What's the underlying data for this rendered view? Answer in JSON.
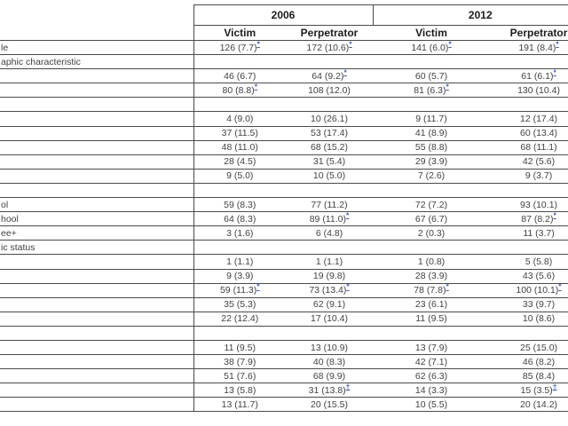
{
  "table": {
    "year_groups": [
      {
        "label": "2006"
      },
      {
        "label": "2012"
      }
    ],
    "col_headers": [
      "Victim",
      "Perpetrator",
      "Victim",
      "Perpetrator"
    ],
    "rows": [
      {
        "label": "le",
        "cells": [
          {
            "text": "126 (7.7)",
            "marker": "*"
          },
          {
            "text": "172 (10.6)",
            "marker": "*"
          },
          {
            "text": "141 (6.0)",
            "marker": "*"
          },
          {
            "text": "191 (8.4)",
            "marker": "*"
          }
        ]
      },
      {
        "label": "aphic characteristic",
        "cells": [
          {
            "text": "",
            "marker": ""
          },
          {
            "text": "",
            "marker": ""
          },
          {
            "text": "",
            "marker": ""
          },
          {
            "text": "",
            "marker": ""
          }
        ]
      },
      {
        "label": "",
        "cells": [
          {
            "text": "46 (6.7)",
            "marker": ""
          },
          {
            "text": "64 (9.2)",
            "marker": "*"
          },
          {
            "text": "60 (5.7)",
            "marker": ""
          },
          {
            "text": "61 (6.1)",
            "marker": "*"
          }
        ]
      },
      {
        "label": "",
        "cells": [
          {
            "text": "80 (8.8)",
            "marker": "*"
          },
          {
            "text": "108 (12.0)",
            "marker": ""
          },
          {
            "text": "81 (6.3)",
            "marker": "*"
          },
          {
            "text": "130 (10.4)",
            "marker": ""
          }
        ]
      },
      {
        "label": "",
        "cells": [
          {
            "text": "",
            "marker": ""
          },
          {
            "text": "",
            "marker": ""
          },
          {
            "text": "",
            "marker": ""
          },
          {
            "text": "",
            "marker": ""
          }
        ]
      },
      {
        "label": "",
        "cells": [
          {
            "text": "4 (9.0)",
            "marker": ""
          },
          {
            "text": "10 (26.1)",
            "marker": ""
          },
          {
            "text": "9 (11.7)",
            "marker": ""
          },
          {
            "text": "12 (17.4)",
            "marker": ""
          }
        ]
      },
      {
        "label": "",
        "cells": [
          {
            "text": "37 (11.5)",
            "marker": ""
          },
          {
            "text": "53 (17.4)",
            "marker": ""
          },
          {
            "text": "41 (8.9)",
            "marker": ""
          },
          {
            "text": "60 (13.4)",
            "marker": ""
          }
        ]
      },
      {
        "label": "",
        "cells": [
          {
            "text": "48 (11.0)",
            "marker": ""
          },
          {
            "text": "68 (15.2)",
            "marker": ""
          },
          {
            "text": "55 (8.8)",
            "marker": ""
          },
          {
            "text": "68 (11.1)",
            "marker": ""
          }
        ]
      },
      {
        "label": "",
        "cells": [
          {
            "text": "28 (4.5)",
            "marker": ""
          },
          {
            "text": "31 (5.4)",
            "marker": ""
          },
          {
            "text": "29 (3.9)",
            "marker": ""
          },
          {
            "text": "42 (5.6)",
            "marker": ""
          }
        ]
      },
      {
        "label": "",
        "cells": [
          {
            "text": "9 (5.0)",
            "marker": ""
          },
          {
            "text": "10 (5.0)",
            "marker": ""
          },
          {
            "text": "7 (2.6)",
            "marker": ""
          },
          {
            "text": "9 (3.7)",
            "marker": ""
          }
        ]
      },
      {
        "label": "",
        "cells": [
          {
            "text": "",
            "marker": ""
          },
          {
            "text": "",
            "marker": ""
          },
          {
            "text": "",
            "marker": ""
          },
          {
            "text": "",
            "marker": ""
          }
        ]
      },
      {
        "label": "ol",
        "cells": [
          {
            "text": "59 (8.3)",
            "marker": ""
          },
          {
            "text": "77 (11.2)",
            "marker": ""
          },
          {
            "text": "72 (7.2)",
            "marker": ""
          },
          {
            "text": "93 (10.1)",
            "marker": ""
          }
        ]
      },
      {
        "label": "hool",
        "cells": [
          {
            "text": "64 (8.3)",
            "marker": ""
          },
          {
            "text": "89 (11.0)",
            "marker": "*"
          },
          {
            "text": "67 (6.7)",
            "marker": ""
          },
          {
            "text": "87 (8.2)",
            "marker": "*"
          }
        ]
      },
      {
        "label": "ee+",
        "cells": [
          {
            "text": "3 (1.6)",
            "marker": ""
          },
          {
            "text": "6 (4.8)",
            "marker": ""
          },
          {
            "text": "2 (0.3)",
            "marker": ""
          },
          {
            "text": "11 (3.7)",
            "marker": ""
          }
        ]
      },
      {
        "label": "ic status",
        "cells": [
          {
            "text": "",
            "marker": ""
          },
          {
            "text": "",
            "marker": ""
          },
          {
            "text": "",
            "marker": ""
          },
          {
            "text": "",
            "marker": ""
          }
        ]
      },
      {
        "label": "",
        "cells": [
          {
            "text": "1 (1.1)",
            "marker": ""
          },
          {
            "text": "1 (1.1)",
            "marker": ""
          },
          {
            "text": "1 (0.8)",
            "marker": ""
          },
          {
            "text": "5 (5.8)",
            "marker": ""
          }
        ]
      },
      {
        "label": "",
        "cells": [
          {
            "text": "9 (3.9)",
            "marker": ""
          },
          {
            "text": "19 (9.8)",
            "marker": ""
          },
          {
            "text": "28 (3.9)",
            "marker": ""
          },
          {
            "text": "43 (5.6)",
            "marker": ""
          }
        ]
      },
      {
        "label": "",
        "cells": [
          {
            "text": "59 (11.3)",
            "marker": "*"
          },
          {
            "text": "73 (13.4)",
            "marker": "*"
          },
          {
            "text": "78 (7.8)",
            "marker": "*"
          },
          {
            "text": "100 (10.1)",
            "marker": "*"
          }
        ]
      },
      {
        "label": "",
        "cells": [
          {
            "text": "35 (5.3)",
            "marker": ""
          },
          {
            "text": "62 (9.1)",
            "marker": ""
          },
          {
            "text": "23 (6.1)",
            "marker": ""
          },
          {
            "text": "33 (9.7)",
            "marker": ""
          }
        ]
      },
      {
        "label": "",
        "cells": [
          {
            "text": "22 (12.4)",
            "marker": ""
          },
          {
            "text": "17 (10.4)",
            "marker": ""
          },
          {
            "text": "11 (9.5)",
            "marker": ""
          },
          {
            "text": "10 (8.6)",
            "marker": ""
          }
        ]
      },
      {
        "label": "",
        "cells": [
          {
            "text": "",
            "marker": ""
          },
          {
            "text": "",
            "marker": ""
          },
          {
            "text": "",
            "marker": ""
          },
          {
            "text": "",
            "marker": ""
          }
        ]
      },
      {
        "label": "",
        "cells": [
          {
            "text": "11 (9.5)",
            "marker": ""
          },
          {
            "text": "13 (10.9)",
            "marker": ""
          },
          {
            "text": "13 (7.9)",
            "marker": ""
          },
          {
            "text": "25 (15.0)",
            "marker": ""
          }
        ]
      },
      {
        "label": "",
        "cells": [
          {
            "text": "38 (7.9)",
            "marker": ""
          },
          {
            "text": "40 (8.3)",
            "marker": ""
          },
          {
            "text": "42 (7.1)",
            "marker": ""
          },
          {
            "text": "46 (8.2)",
            "marker": ""
          }
        ]
      },
      {
        "label": "",
        "cells": [
          {
            "text": "51 (7.6)",
            "marker": ""
          },
          {
            "text": "68 (9.9)",
            "marker": ""
          },
          {
            "text": "62 (6.3)",
            "marker": ""
          },
          {
            "text": "85 (8.4)",
            "marker": ""
          }
        ]
      },
      {
        "label": "",
        "cells": [
          {
            "text": "13 (5.8)",
            "marker": ""
          },
          {
            "text": "31 (13.8)",
            "marker": "†"
          },
          {
            "text": "14 (3.3)",
            "marker": ""
          },
          {
            "text": "15 (3.5)",
            "marker": "†"
          }
        ]
      },
      {
        "label": "",
        "cells": [
          {
            "text": "13 (11.7)",
            "marker": ""
          },
          {
            "text": "20 (15.5)",
            "marker": ""
          },
          {
            "text": "10 (5.5)",
            "marker": ""
          },
          {
            "text": "20 (14.2)",
            "marker": ""
          }
        ]
      }
    ]
  }
}
